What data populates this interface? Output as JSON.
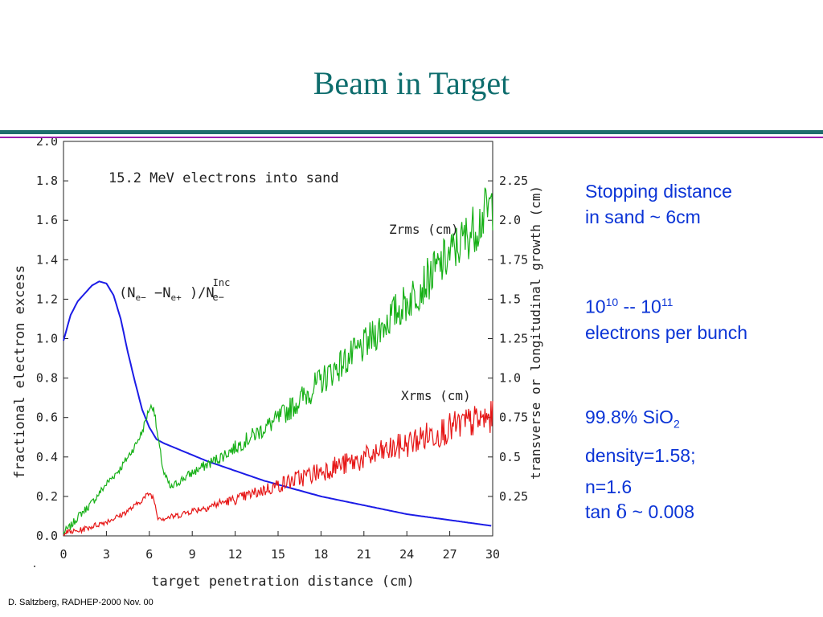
{
  "slide": {
    "title": "Beam in Target",
    "footer": "D. Saltzberg, RADHEP-2000  Nov. 00"
  },
  "notes": {
    "stopping_line1": "Stopping distance",
    "stopping_line2": "in sand ~ 6cm",
    "electrons_a": "10",
    "electrons_exp1": "10",
    "electrons_mid": " -- 10",
    "electrons_exp2": "11",
    "electrons_line2": "electrons per bunch",
    "composition_a": "99.8% SiO",
    "composition_sub": "2",
    "density": "density=1.58;",
    "index": "n=1.6",
    "tan_prefix": "tan ",
    "tan_symbol": "δ",
    "tan_suffix": " ~ 0.008"
  },
  "colors": {
    "title": "#0e6d6d",
    "notes": "#0b34d6",
    "fraction_series": "#1c1ce6",
    "zrms_series": "#16b016",
    "xrms_series": "#e61616"
  },
  "chart_data": {
    "type": "line",
    "annotation": "15.2  MeV  electrons  into  sand",
    "xlabel": "target  penetration  distance  (cm)",
    "ylabel_left": "fractional  electron  excess",
    "ylabel_right": "transverse  or  longitudinal  growth  (cm)",
    "xlim": [
      0,
      30
    ],
    "ylim_left": [
      0,
      2.0
    ],
    "ylim_right": [
      0,
      2.5
    ],
    "x_ticks": [
      "0",
      "3",
      "6",
      "9",
      "12",
      "15",
      "18",
      "21",
      "24",
      "27",
      "30"
    ],
    "y_left_ticks": [
      "0.0",
      "0.2",
      "0.4",
      "0.6",
      "0.8",
      "1.0",
      "1.2",
      "1.4",
      "1.6",
      "1.8",
      "2.0"
    ],
    "y_right_ticks": [
      "0.25",
      "0.5",
      "0.75",
      "1.0",
      "1.25",
      "1.5",
      "1.75",
      "2.0",
      "2.25"
    ],
    "series": [
      {
        "name": "(Ne−−Ne+)/Ne−Inc",
        "label_main": "(N",
        "label_sub1": "e−",
        "label_mid1": " −N",
        "label_sub2": "e+",
        "label_mid2": " )/N",
        "label_sup": "Inc",
        "label_sub3": "e−",
        "axis": "left",
        "x": [
          0,
          0.5,
          1,
          1.5,
          2,
          2.5,
          3,
          3.5,
          4,
          4.5,
          5,
          5.5,
          6,
          6.5,
          7,
          8,
          9,
          10,
          12,
          14,
          16,
          18,
          20,
          22,
          24,
          26,
          28,
          30
        ],
        "y": [
          0.99,
          1.12,
          1.19,
          1.23,
          1.27,
          1.29,
          1.28,
          1.22,
          1.1,
          0.93,
          0.78,
          0.64,
          0.55,
          0.49,
          0.47,
          0.44,
          0.41,
          0.38,
          0.33,
          0.28,
          0.24,
          0.2,
          0.17,
          0.14,
          0.11,
          0.09,
          0.07,
          0.05
        ]
      },
      {
        "name": "Zrms  (cm)",
        "axis": "right",
        "x": [
          0,
          0.5,
          1,
          2,
          3,
          4,
          5,
          5.5,
          6,
          6.3,
          6.6,
          7,
          7.5,
          8,
          9,
          10,
          11,
          12,
          13,
          14,
          15,
          16,
          17,
          18,
          19,
          20,
          21,
          22,
          23,
          24,
          25,
          26,
          27,
          28,
          29,
          29.5,
          30
        ],
        "y": [
          0.02,
          0.06,
          0.12,
          0.21,
          0.33,
          0.43,
          0.57,
          0.66,
          0.81,
          0.82,
          0.62,
          0.4,
          0.3,
          0.34,
          0.4,
          0.45,
          0.5,
          0.56,
          0.62,
          0.68,
          0.74,
          0.82,
          0.9,
          0.98,
          1.06,
          1.13,
          1.2,
          1.3,
          1.4,
          1.48,
          1.58,
          1.68,
          1.78,
          1.88,
          1.98,
          2.05,
          2.1
        ]
      },
      {
        "name": "Xrms  (cm)",
        "axis": "right",
        "x": [
          0,
          1,
          2,
          3,
          4,
          5,
          5.5,
          6,
          6.3,
          6.6,
          7,
          8,
          9,
          10,
          11,
          12,
          13,
          14,
          15,
          16,
          17,
          18,
          19,
          20,
          21,
          22,
          23,
          24,
          25,
          26,
          27,
          28,
          29,
          30
        ],
        "y": [
          0.02,
          0.03,
          0.06,
          0.09,
          0.13,
          0.19,
          0.23,
          0.27,
          0.24,
          0.12,
          0.11,
          0.13,
          0.16,
          0.18,
          0.21,
          0.23,
          0.26,
          0.29,
          0.32,
          0.35,
          0.38,
          0.41,
          0.44,
          0.46,
          0.49,
          0.52,
          0.55,
          0.58,
          0.62,
          0.65,
          0.68,
          0.71,
          0.73,
          0.75
        ]
      }
    ]
  }
}
